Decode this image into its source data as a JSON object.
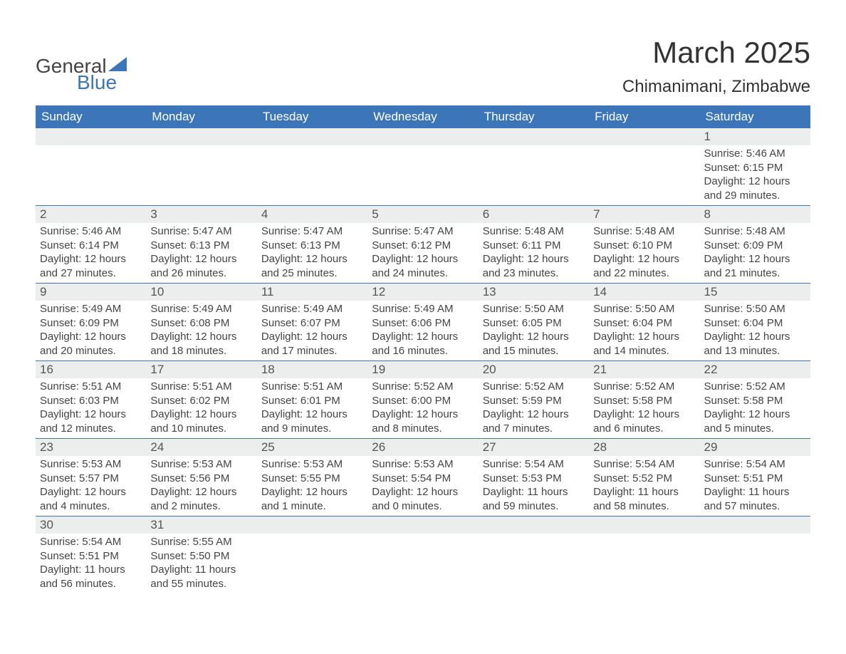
{
  "logo": {
    "word1": "General",
    "word2": "Blue"
  },
  "title": "March 2025",
  "location": "Chimanimani, Zimbabwe",
  "headers": [
    "Sunday",
    "Monday",
    "Tuesday",
    "Wednesday",
    "Thursday",
    "Friday",
    "Saturday"
  ],
  "colors": {
    "header_bg": "#3d76b8",
    "row_border": "#3d76b8",
    "daynum_bg": "#eceded",
    "text": "#444444",
    "bg": "#ffffff"
  },
  "weeks": [
    [
      {
        "n": "",
        "lines": []
      },
      {
        "n": "",
        "lines": []
      },
      {
        "n": "",
        "lines": []
      },
      {
        "n": "",
        "lines": []
      },
      {
        "n": "",
        "lines": []
      },
      {
        "n": "",
        "lines": []
      },
      {
        "n": "1",
        "lines": [
          "Sunrise: 5:46 AM",
          "Sunset: 6:15 PM",
          "Daylight: 12 hours and 29 minutes."
        ]
      }
    ],
    [
      {
        "n": "2",
        "lines": [
          "Sunrise: 5:46 AM",
          "Sunset: 6:14 PM",
          "Daylight: 12 hours and 27 minutes."
        ]
      },
      {
        "n": "3",
        "lines": [
          "Sunrise: 5:47 AM",
          "Sunset: 6:13 PM",
          "Daylight: 12 hours and 26 minutes."
        ]
      },
      {
        "n": "4",
        "lines": [
          "Sunrise: 5:47 AM",
          "Sunset: 6:13 PM",
          "Daylight: 12 hours and 25 minutes."
        ]
      },
      {
        "n": "5",
        "lines": [
          "Sunrise: 5:47 AM",
          "Sunset: 6:12 PM",
          "Daylight: 12 hours and 24 minutes."
        ]
      },
      {
        "n": "6",
        "lines": [
          "Sunrise: 5:48 AM",
          "Sunset: 6:11 PM",
          "Daylight: 12 hours and 23 minutes."
        ]
      },
      {
        "n": "7",
        "lines": [
          "Sunrise: 5:48 AM",
          "Sunset: 6:10 PM",
          "Daylight: 12 hours and 22 minutes."
        ]
      },
      {
        "n": "8",
        "lines": [
          "Sunrise: 5:48 AM",
          "Sunset: 6:09 PM",
          "Daylight: 12 hours and 21 minutes."
        ]
      }
    ],
    [
      {
        "n": "9",
        "lines": [
          "Sunrise: 5:49 AM",
          "Sunset: 6:09 PM",
          "Daylight: 12 hours and 20 minutes."
        ]
      },
      {
        "n": "10",
        "lines": [
          "Sunrise: 5:49 AM",
          "Sunset: 6:08 PM",
          "Daylight: 12 hours and 18 minutes."
        ]
      },
      {
        "n": "11",
        "lines": [
          "Sunrise: 5:49 AM",
          "Sunset: 6:07 PM",
          "Daylight: 12 hours and 17 minutes."
        ]
      },
      {
        "n": "12",
        "lines": [
          "Sunrise: 5:49 AM",
          "Sunset: 6:06 PM",
          "Daylight: 12 hours and 16 minutes."
        ]
      },
      {
        "n": "13",
        "lines": [
          "Sunrise: 5:50 AM",
          "Sunset: 6:05 PM",
          "Daylight: 12 hours and 15 minutes."
        ]
      },
      {
        "n": "14",
        "lines": [
          "Sunrise: 5:50 AM",
          "Sunset: 6:04 PM",
          "Daylight: 12 hours and 14 minutes."
        ]
      },
      {
        "n": "15",
        "lines": [
          "Sunrise: 5:50 AM",
          "Sunset: 6:04 PM",
          "Daylight: 12 hours and 13 minutes."
        ]
      }
    ],
    [
      {
        "n": "16",
        "lines": [
          "Sunrise: 5:51 AM",
          "Sunset: 6:03 PM",
          "Daylight: 12 hours and 12 minutes."
        ]
      },
      {
        "n": "17",
        "lines": [
          "Sunrise: 5:51 AM",
          "Sunset: 6:02 PM",
          "Daylight: 12 hours and 10 minutes."
        ]
      },
      {
        "n": "18",
        "lines": [
          "Sunrise: 5:51 AM",
          "Sunset: 6:01 PM",
          "Daylight: 12 hours and 9 minutes."
        ]
      },
      {
        "n": "19",
        "lines": [
          "Sunrise: 5:52 AM",
          "Sunset: 6:00 PM",
          "Daylight: 12 hours and 8 minutes."
        ]
      },
      {
        "n": "20",
        "lines": [
          "Sunrise: 5:52 AM",
          "Sunset: 5:59 PM",
          "Daylight: 12 hours and 7 minutes."
        ]
      },
      {
        "n": "21",
        "lines": [
          "Sunrise: 5:52 AM",
          "Sunset: 5:58 PM",
          "Daylight: 12 hours and 6 minutes."
        ]
      },
      {
        "n": "22",
        "lines": [
          "Sunrise: 5:52 AM",
          "Sunset: 5:58 PM",
          "Daylight: 12 hours and 5 minutes."
        ]
      }
    ],
    [
      {
        "n": "23",
        "lines": [
          "Sunrise: 5:53 AM",
          "Sunset: 5:57 PM",
          "Daylight: 12 hours and 4 minutes."
        ]
      },
      {
        "n": "24",
        "lines": [
          "Sunrise: 5:53 AM",
          "Sunset: 5:56 PM",
          "Daylight: 12 hours and 2 minutes."
        ]
      },
      {
        "n": "25",
        "lines": [
          "Sunrise: 5:53 AM",
          "Sunset: 5:55 PM",
          "Daylight: 12 hours and 1 minute."
        ]
      },
      {
        "n": "26",
        "lines": [
          "Sunrise: 5:53 AM",
          "Sunset: 5:54 PM",
          "Daylight: 12 hours and 0 minutes."
        ]
      },
      {
        "n": "27",
        "lines": [
          "Sunrise: 5:54 AM",
          "Sunset: 5:53 PM",
          "Daylight: 11 hours and 59 minutes."
        ]
      },
      {
        "n": "28",
        "lines": [
          "Sunrise: 5:54 AM",
          "Sunset: 5:52 PM",
          "Daylight: 11 hours and 58 minutes."
        ]
      },
      {
        "n": "29",
        "lines": [
          "Sunrise: 5:54 AM",
          "Sunset: 5:51 PM",
          "Daylight: 11 hours and 57 minutes."
        ]
      }
    ],
    [
      {
        "n": "30",
        "lines": [
          "Sunrise: 5:54 AM",
          "Sunset: 5:51 PM",
          "Daylight: 11 hours and 56 minutes."
        ]
      },
      {
        "n": "31",
        "lines": [
          "Sunrise: 5:55 AM",
          "Sunset: 5:50 PM",
          "Daylight: 11 hours and 55 minutes."
        ]
      },
      {
        "n": "",
        "lines": []
      },
      {
        "n": "",
        "lines": []
      },
      {
        "n": "",
        "lines": []
      },
      {
        "n": "",
        "lines": []
      },
      {
        "n": "",
        "lines": []
      }
    ]
  ]
}
